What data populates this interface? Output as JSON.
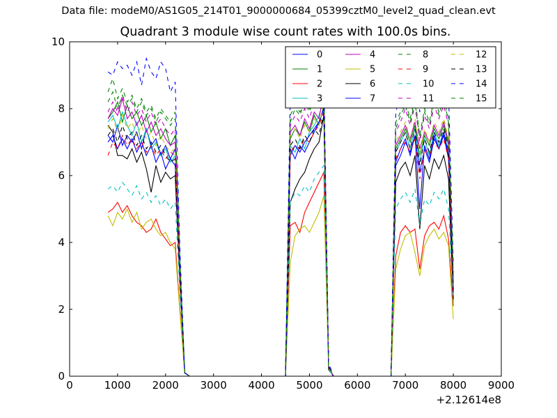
{
  "suptitle": "Data file: modeM0/AS1G05_214T01_9000000684_05399cztM0_level2_quad_clean.evt",
  "chart_data": {
    "type": "line",
    "title": "Quadrant 3 module wise count rates with 100.0s bins.",
    "xlabel": "",
    "ylabel": "",
    "x_offset_label": "+2.12614e8",
    "xlim": [
      0,
      9000
    ],
    "ylim": [
      0,
      10
    ],
    "xticks": [
      "0",
      "1000",
      "2000",
      "3000",
      "4000",
      "5000",
      "6000",
      "7000",
      "8000",
      "9000"
    ],
    "yticks": [
      "0",
      "2",
      "4",
      "6",
      "8",
      "10"
    ],
    "legend_position": "top-right",
    "legend_columns": 4,
    "x": [
      800,
      900,
      1000,
      1100,
      1200,
      1300,
      1400,
      1500,
      1600,
      1700,
      1800,
      1900,
      2000,
      2100,
      2200,
      2300,
      2400,
      2500,
      2600,
      2700,
      2800,
      2900,
      3000,
      3100,
      3200,
      3300,
      3400,
      3500,
      3600,
      3700,
      3800,
      3900,
      4000,
      4100,
      4200,
      4300,
      4400,
      4500,
      4600,
      4700,
      4800,
      4900,
      5000,
      5100,
      5200,
      5300,
      5400,
      5500,
      5600,
      5700,
      5800,
      5900,
      6000,
      6100,
      6200,
      6300,
      6400,
      6500,
      6600,
      6700,
      6800,
      6900,
      7000,
      7100,
      7200,
      7300,
      7400,
      7500,
      7600,
      7700,
      7800,
      7900,
      8000
    ],
    "series": [
      {
        "name": "0",
        "color": "#0000ff",
        "dash": "solid",
        "values": [
          7.2,
          7.0,
          7.5,
          6.9,
          7.2,
          7.0,
          7.3,
          6.8,
          7.4,
          6.9,
          7.1,
          6.6,
          6.9,
          6.5,
          6.8,
          3.0,
          0.1,
          0,
          0,
          0,
          0,
          0,
          0,
          0,
          0,
          0,
          0,
          0,
          0,
          0,
          0,
          0,
          0,
          0,
          0,
          0,
          0,
          0,
          6.8,
          6.5,
          6.9,
          6.7,
          7.0,
          7.3,
          7.6,
          8.0,
          0.3,
          0,
          0,
          0,
          0,
          0,
          0,
          0,
          0,
          0,
          0,
          0,
          0,
          0,
          6.3,
          6.6,
          7.0,
          6.7,
          7.2,
          6.1,
          6.8,
          6.4,
          7.1,
          6.8,
          7.2,
          6.5,
          2.6
        ]
      },
      {
        "name": "1",
        "color": "#008000",
        "dash": "solid",
        "values": [
          7.7,
          7.9,
          8.2,
          7.6,
          8.1,
          7.7,
          7.9,
          7.5,
          7.8,
          7.3,
          7.6,
          7.1,
          7.4,
          6.9,
          7.2,
          3.1,
          0.1,
          0,
          0,
          0,
          0,
          0,
          0,
          0,
          0,
          0,
          0,
          0,
          0,
          0,
          0,
          0,
          0,
          0,
          0,
          0,
          0,
          0,
          7.1,
          7.4,
          7.2,
          7.6,
          7.3,
          7.8,
          7.5,
          8.1,
          0.3,
          0,
          0,
          0,
          0,
          0,
          0,
          0,
          0,
          0,
          0,
          0,
          0,
          0,
          6.8,
          7.1,
          7.4,
          7.0,
          7.5,
          6.6,
          7.2,
          6.9,
          7.4,
          7.1,
          7.5,
          6.9,
          2.7
        ]
      },
      {
        "name": "2",
        "color": "#ff0000",
        "dash": "solid",
        "values": [
          4.9,
          5.0,
          5.2,
          4.9,
          5.1,
          4.8,
          4.6,
          4.5,
          4.3,
          4.4,
          4.7,
          4.3,
          4.1,
          3.9,
          4.0,
          2.0,
          0.1,
          0,
          0,
          0,
          0,
          0,
          0,
          0,
          0,
          0,
          0,
          0,
          0,
          0,
          0,
          0,
          0,
          0,
          0,
          0,
          0,
          0,
          4.5,
          4.6,
          4.3,
          4.9,
          5.2,
          5.5,
          5.8,
          6.1,
          0.2,
          0,
          0,
          0,
          0,
          0,
          0,
          0,
          0,
          0,
          0,
          0,
          0,
          0,
          3.6,
          4.3,
          4.5,
          4.3,
          4.4,
          3.2,
          4.2,
          4.5,
          4.6,
          4.4,
          4.8,
          4.1,
          2.1
        ]
      },
      {
        "name": "3",
        "color": "#00bfbf",
        "dash": "solid",
        "values": [
          7.6,
          7.8,
          7.4,
          7.9,
          7.5,
          7.2,
          7.6,
          7.0,
          7.4,
          6.8,
          7.0,
          6.6,
          6.8,
          6.4,
          6.6,
          3.0,
          0.1,
          0,
          0,
          0,
          0,
          0,
          0,
          0,
          0,
          0,
          0,
          0,
          0,
          0,
          0,
          0,
          0,
          0,
          0,
          0,
          0,
          0,
          6.9,
          6.7,
          7.1,
          6.8,
          7.3,
          7.5,
          7.8,
          8.3,
          0.3,
          0,
          0,
          0,
          0,
          0,
          0,
          0,
          0,
          0,
          0,
          0,
          0,
          0,
          6.7,
          7.0,
          7.3,
          6.8,
          7.4,
          6.4,
          7.1,
          6.6,
          7.3,
          6.9,
          7.3,
          6.7,
          2.5
        ]
      },
      {
        "name": "4",
        "color": "#bf00bf",
        "dash": "solid",
        "values": [
          7.7,
          8.0,
          7.8,
          8.3,
          7.7,
          7.9,
          7.5,
          7.8,
          7.3,
          7.6,
          7.2,
          7.4,
          7.1,
          6.9,
          7.0,
          3.0,
          0.1,
          0,
          0,
          0,
          0,
          0,
          0,
          0,
          0,
          0,
          0,
          0,
          0,
          0,
          0,
          0,
          0,
          0,
          0,
          0,
          0,
          0,
          7.3,
          7.5,
          7.2,
          7.7,
          7.4,
          7.9,
          7.7,
          8.5,
          0.3,
          0,
          0,
          0,
          0,
          0,
          0,
          0,
          0,
          0,
          0,
          0,
          0,
          0,
          6.9,
          7.2,
          7.5,
          7.1,
          7.6,
          6.8,
          7.3,
          7.0,
          7.5,
          7.2,
          7.6,
          7.0,
          2.8
        ]
      },
      {
        "name": "5",
        "color": "#bfbf00",
        "dash": "solid",
        "values": [
          4.8,
          4.5,
          4.9,
          4.7,
          5.0,
          4.6,
          4.9,
          4.4,
          4.6,
          4.7,
          4.4,
          4.2,
          4.3,
          4.0,
          3.8,
          1.9,
          0.1,
          0,
          0,
          0,
          0,
          0,
          0,
          0,
          0,
          0,
          0,
          0,
          0,
          0,
          0,
          0,
          0,
          0,
          0,
          0,
          0,
          0,
          3.4,
          4.2,
          4.4,
          4.5,
          4.3,
          4.6,
          4.9,
          5.4,
          0.2,
          0,
          0,
          0,
          0,
          0,
          0,
          0,
          0,
          0,
          0,
          0,
          0,
          0,
          3.2,
          3.8,
          4.2,
          4.3,
          3.7,
          3.0,
          3.9,
          4.2,
          4.4,
          4.1,
          4.3,
          3.9,
          1.7
        ]
      },
      {
        "name": "6",
        "color": "#000000",
        "dash": "solid",
        "values": [
          7.5,
          7.3,
          6.6,
          6.6,
          6.5,
          6.8,
          6.4,
          6.7,
          6.2,
          5.5,
          6.3,
          5.8,
          6.1,
          5.9,
          6.0,
          2.8,
          0.1,
          0,
          0,
          0,
          0,
          0,
          0,
          0,
          0,
          0,
          0,
          0,
          0,
          0,
          0,
          0,
          0,
          0,
          0,
          0,
          0,
          0,
          5.2,
          5.6,
          5.9,
          6.1,
          6.5,
          6.8,
          7.0,
          7.8,
          0.2,
          0,
          0,
          0,
          0,
          0,
          0,
          0,
          0,
          0,
          0,
          0,
          0,
          0,
          5.8,
          6.2,
          6.4,
          6.0,
          6.6,
          4.4,
          6.3,
          5.9,
          6.5,
          6.2,
          6.6,
          5.9,
          2.3
        ]
      },
      {
        "name": "7",
        "color": "#0000ff",
        "dash": "solid",
        "values": [
          7.0,
          7.2,
          6.8,
          7.1,
          6.8,
          7.1,
          6.7,
          7.0,
          6.6,
          6.9,
          6.4,
          6.7,
          6.2,
          6.5,
          6.3,
          2.9,
          0.1,
          0,
          0,
          0,
          0,
          0,
          0,
          0,
          0,
          0,
          0,
          0,
          0,
          0,
          0,
          0,
          0,
          0,
          0,
          0,
          0,
          0,
          6.6,
          6.9,
          6.7,
          7.0,
          7.2,
          7.4,
          7.6,
          8.0,
          0.3,
          0,
          0,
          0,
          0,
          0,
          0,
          0,
          0,
          0,
          0,
          0,
          0,
          0,
          6.4,
          6.8,
          7.1,
          6.6,
          7.2,
          5.0,
          6.9,
          6.5,
          7.2,
          6.8,
          7.3,
          6.6,
          2.5
        ]
      },
      {
        "name": "8",
        "color": "#008000",
        "dash": "dashed",
        "values": [
          8.5,
          8.9,
          8.3,
          8.6,
          8.2,
          8.4,
          8.0,
          8.3,
          7.9,
          8.1,
          7.7,
          8.0,
          7.8,
          7.6,
          7.9,
          3.5,
          0.1,
          0,
          0,
          0,
          0,
          0,
          0,
          0,
          0,
          0,
          0,
          0,
          0,
          0,
          0,
          0,
          0,
          0,
          0,
          0,
          0,
          0,
          7.6,
          8.0,
          7.8,
          8.2,
          7.9,
          8.4,
          8.1,
          8.8,
          0.3,
          0,
          0,
          0,
          0,
          0,
          0,
          0,
          0,
          0,
          0,
          0,
          0,
          0,
          7.4,
          7.8,
          8.1,
          7.6,
          8.2,
          7.1,
          7.9,
          7.5,
          8.2,
          7.8,
          8.3,
          7.6,
          3.0
        ]
      },
      {
        "name": "9",
        "color": "#ff0000",
        "dash": "dashed",
        "values": [
          6.6,
          7.0,
          6.8,
          7.2,
          6.9,
          7.1,
          6.8,
          7.0,
          6.7,
          6.9,
          6.6,
          6.8,
          6.5,
          6.7,
          6.6,
          3.0,
          0.1,
          0,
          0,
          0,
          0,
          0,
          0,
          0,
          0,
          0,
          0,
          0,
          0,
          0,
          0,
          0,
          0,
          0,
          0,
          0,
          0,
          0,
          6.7,
          6.9,
          6.8,
          7.1,
          7.0,
          7.3,
          7.5,
          7.9,
          0.3,
          0,
          0,
          0,
          0,
          0,
          0,
          0,
          0,
          0,
          0,
          0,
          0,
          0,
          6.5,
          6.8,
          7.0,
          6.7,
          7.1,
          5.9,
          6.8,
          6.6,
          7.0,
          6.8,
          7.1,
          6.5,
          2.6
        ]
      },
      {
        "name": "10",
        "color": "#00bfbf",
        "dash": "dashed",
        "values": [
          5.6,
          5.7,
          5.5,
          5.8,
          5.6,
          5.4,
          5.7,
          5.3,
          5.5,
          5.2,
          5.4,
          5.1,
          5.3,
          5.0,
          5.2,
          2.5,
          0.1,
          0,
          0,
          0,
          0,
          0,
          0,
          0,
          0,
          0,
          0,
          0,
          0,
          0,
          0,
          0,
          0,
          0,
          0,
          0,
          0,
          0,
          5.2,
          5.5,
          5.4,
          5.7,
          5.5,
          5.9,
          6.1,
          6.3,
          0.2,
          0,
          0,
          0,
          0,
          0,
          0,
          0,
          0,
          0,
          0,
          0,
          0,
          0,
          5.0,
          5.3,
          5.5,
          5.2,
          5.6,
          4.5,
          5.3,
          5.1,
          5.5,
          5.3,
          5.6,
          5.0,
          2.2
        ]
      },
      {
        "name": "11",
        "color": "#bf00bf",
        "dash": "dashed",
        "values": [
          7.9,
          8.2,
          7.9,
          8.4,
          7.9,
          8.2,
          7.8,
          8.0,
          7.6,
          7.9,
          7.5,
          7.7,
          7.4,
          7.2,
          7.4,
          3.2,
          0.1,
          0,
          0,
          0,
          0,
          0,
          0,
          0,
          0,
          0,
          0,
          0,
          0,
          0,
          0,
          0,
          0,
          0,
          0,
          0,
          0,
          0,
          7.5,
          7.8,
          7.6,
          8.0,
          7.7,
          8.2,
          8.0,
          8.7,
          0.3,
          0,
          0,
          0,
          0,
          0,
          0,
          0,
          0,
          0,
          0,
          0,
          0,
          0,
          7.3,
          7.6,
          8.0,
          7.5,
          8.1,
          7.0,
          7.8,
          7.4,
          8.1,
          7.7,
          8.1,
          7.5,
          2.9
        ]
      },
      {
        "name": "12",
        "color": "#bfbf00",
        "dash": "dashed",
        "values": [
          7.4,
          7.7,
          7.3,
          7.8,
          7.4,
          7.6,
          7.2,
          7.5,
          7.1,
          7.3,
          6.9,
          7.2,
          6.9,
          6.7,
          6.8,
          3.1,
          0.1,
          0,
          0,
          0,
          0,
          0,
          0,
          0,
          0,
          0,
          0,
          0,
          0,
          0,
          0,
          0,
          0,
          0,
          0,
          0,
          0,
          0,
          7.2,
          7.4,
          7.1,
          7.5,
          7.3,
          7.7,
          7.5,
          8.2,
          0.3,
          0,
          0,
          0,
          0,
          0,
          0,
          0,
          0,
          0,
          0,
          0,
          0,
          0,
          7.0,
          7.3,
          7.6,
          7.1,
          7.7,
          6.6,
          7.4,
          7.0,
          7.6,
          7.3,
          7.7,
          7.1,
          2.7
        ]
      },
      {
        "name": "13",
        "color": "#000000",
        "dash": "dashed",
        "values": [
          7.2,
          7.4,
          7.0,
          7.5,
          7.1,
          7.3,
          6.9,
          7.2,
          6.8,
          7.0,
          6.7,
          6.9,
          6.6,
          6.4,
          6.5,
          3.0,
          0.1,
          0,
          0,
          0,
          0,
          0,
          0,
          0,
          0,
          0,
          0,
          0,
          0,
          0,
          0,
          0,
          0,
          0,
          0,
          0,
          0,
          0,
          6.9,
          7.1,
          6.8,
          7.2,
          7.0,
          7.4,
          7.2,
          7.9,
          0.3,
          0,
          0,
          0,
          0,
          0,
          0,
          0,
          0,
          0,
          0,
          0,
          0,
          0,
          6.7,
          7.0,
          7.3,
          6.8,
          7.4,
          6.3,
          7.1,
          6.7,
          7.3,
          7.0,
          7.4,
          6.8,
          2.6
        ]
      },
      {
        "name": "14",
        "color": "#0000ff",
        "dash": "dashed",
        "values": [
          9.1,
          9.0,
          9.4,
          9.2,
          9.3,
          9.0,
          9.4,
          8.7,
          9.5,
          9.1,
          8.9,
          9.4,
          9.2,
          8.5,
          8.8,
          3.8,
          0.1,
          0,
          0,
          0,
          0,
          0,
          0,
          0,
          0,
          0,
          0,
          0,
          0,
          0,
          0,
          0,
          0,
          0,
          0,
          0,
          0,
          0,
          8.4,
          8.8,
          8.7,
          9.0,
          8.8,
          9.1,
          9.0,
          9.0,
          0.4,
          0,
          0,
          0,
          0,
          0,
          0,
          0,
          0,
          0,
          0,
          0,
          0,
          0,
          7.9,
          8.4,
          8.8,
          8.5,
          9.0,
          7.9,
          8.9,
          8.6,
          9.3,
          8.8,
          9.2,
          8.5,
          3.3
        ]
      },
      {
        "name": "15",
        "color": "#008000",
        "dash": "dashed",
        "values": [
          8.2,
          8.5,
          8.0,
          8.4,
          8.1,
          8.3,
          7.9,
          8.2,
          7.8,
          8.0,
          7.6,
          7.9,
          7.7,
          7.5,
          7.7,
          3.4,
          0.1,
          0,
          0,
          0,
          0,
          0,
          0,
          0,
          0,
          0,
          0,
          0,
          0,
          0,
          0,
          0,
          0,
          0,
          0,
          0,
          0,
          0,
          7.8,
          8.1,
          7.9,
          8.3,
          8.0,
          8.5,
          8.2,
          8.6,
          0.3,
          0,
          0,
          0,
          0,
          0,
          0,
          0,
          0,
          0,
          0,
          0,
          0,
          0,
          7.6,
          7.9,
          8.2,
          7.7,
          8.3,
          7.2,
          8.0,
          7.6,
          8.3,
          7.9,
          8.3,
          7.7,
          3.0
        ]
      }
    ]
  }
}
